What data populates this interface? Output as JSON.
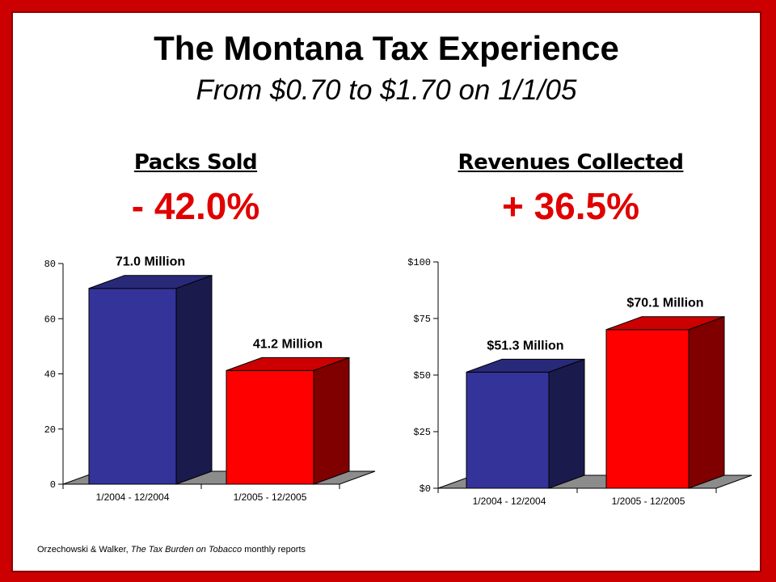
{
  "title": "The Montana Tax Experience",
  "subtitle": "From $0.70 to $1.70 on 1/1/05",
  "panels": {
    "left": {
      "heading": "Packs Sold",
      "change": "- 42.0%"
    },
    "right": {
      "heading": "Revenues Collected",
      "change": "+ 36.5%"
    }
  },
  "source": {
    "authors": "Orzechowski & Walker,",
    "publication": "The Tax Burden on Tobacco",
    "suffix": "monthly reports"
  },
  "colors": {
    "background_frame": "#cc0000",
    "bar_blue": "#333399",
    "bar_red": "#ff0000",
    "highlight_text": "#e00000"
  },
  "chart_data": [
    {
      "type": "bar",
      "style": "3d",
      "categories": [
        "1/2004 - 12/2004",
        "1/2005 - 12/2005"
      ],
      "values": [
        71.0,
        41.2
      ],
      "data_labels": [
        "71.0 Million",
        "41.2 Million"
      ],
      "tick_labels": [
        "0",
        "20",
        "40",
        "60",
        "80"
      ],
      "ylim": [
        0,
        80
      ],
      "bar_colors": [
        "#333399",
        "#ff0000"
      ],
      "grid": false
    },
    {
      "type": "bar",
      "style": "3d",
      "categories": [
        "1/2004 - 12/2004",
        "1/2005 - 12/2005"
      ],
      "values": [
        51.3,
        70.1
      ],
      "data_labels": [
        "$51.3 Million",
        "$70.1 Million"
      ],
      "tick_labels": [
        "$0",
        "$25",
        "$50",
        "$75",
        "$100"
      ],
      "ylim": [
        0,
        100
      ],
      "bar_colors": [
        "#333399",
        "#ff0000"
      ],
      "grid": false
    }
  ]
}
